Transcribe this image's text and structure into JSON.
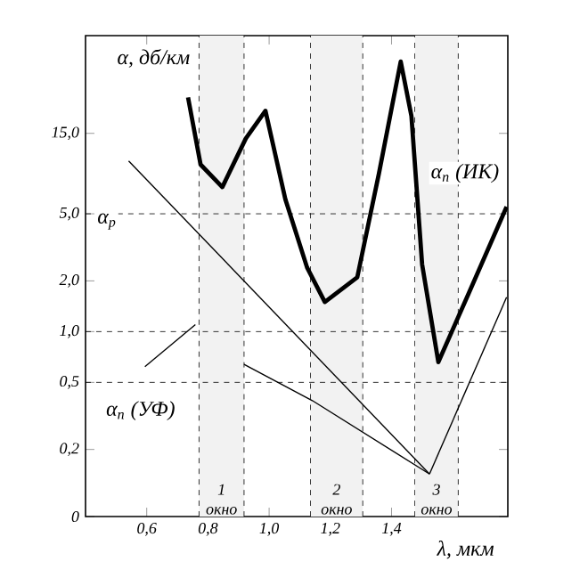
{
  "chart_data": {
    "type": "line",
    "xlabel": "λ, мкм",
    "ylabel": "α, дб/км",
    "log": "y",
    "xlim": [
      0.4,
      1.78
    ],
    "ylim": [
      0.08,
      57
    ],
    "xticks": [
      {
        "value": 0.6,
        "label": "0,6"
      },
      {
        "value": 0.8,
        "label": "0,8"
      },
      {
        "value": 1.0,
        "label": "1,0"
      },
      {
        "value": 1.2,
        "label": "1,2"
      },
      {
        "value": 1.4,
        "label": "1,4"
      }
    ],
    "yticks": [
      {
        "value": 0.08,
        "label": "0"
      },
      {
        "value": 0.2,
        "label": "0,2"
      },
      {
        "value": 0.5,
        "label": "0,5"
      },
      {
        "value": 1,
        "label": "1,0"
      },
      {
        "value": 2,
        "label": "2,0"
      },
      {
        "value": 5,
        "label": "5,0"
      },
      {
        "value": 15,
        "label": "15,0"
      }
    ],
    "series": [
      {
        "color": "#000000",
        "x": [
          0.735,
          0.776,
          0.847,
          0.924,
          0.988,
          1.053,
          1.124,
          1.182,
          1.288,
          1.359,
          1.43,
          1.465,
          1.5,
          1.553,
          1.653,
          1.776
        ],
        "values": [
          24.5,
          9.8,
          7.2,
          14,
          20.4,
          6.1,
          2.4,
          1.5,
          2.1,
          8.7,
          40,
          19,
          2.5,
          0.66,
          1.7,
          5.5
        ]
      },
      {
        "color": "#000000",
        "x": [
          0.541,
          1.524
        ],
        "values": [
          10.3,
          0.143
        ]
      },
      {
        "color": "#000000",
        "x": [
          0.594,
          0.759
        ],
        "values": [
          0.62,
          1.1
        ]
      },
      {
        "color": "#000000",
        "x": [
          0.918,
          1.141,
          1.524
        ],
        "values": [
          0.64,
          0.39,
          0.143
        ]
      },
      {
        "color": "#000000",
        "x": [
          1.524,
          1.776
        ],
        "values": [
          0.143,
          1.6
        ]
      }
    ],
    "bands": [
      {
        "axis": "x",
        "from": 0.771,
        "to": 0.918,
        "label": "1 окно",
        "color": "#f2f2f2"
      },
      {
        "axis": "x",
        "from": 1.135,
        "to": 1.306,
        "label": "2 окно",
        "color": "#f2f2f2"
      },
      {
        "axis": "x",
        "from": 1.476,
        "to": 1.618,
        "label": "3 окно",
        "color": "#f2f2f2"
      }
    ],
    "ref_lines": [
      {
        "axis": "y",
        "value": 5,
        "line_style": "dashed"
      },
      {
        "axis": "y",
        "value": 1,
        "line_style": "dashed"
      },
      {
        "axis": "y",
        "value": 0.5,
        "line_style": "dashed"
      }
    ],
    "annotations": [
      {
        "text": "α$_{р}$",
        "x": 0.47,
        "y": 4.5
      },
      {
        "text": "α$_{п}$ (ИК)",
        "x": 1.64,
        "y": 8.7
      },
      {
        "text": "α$_{п}$ (УФ)",
        "x": 0.58,
        "y": 0.34
      }
    ]
  }
}
